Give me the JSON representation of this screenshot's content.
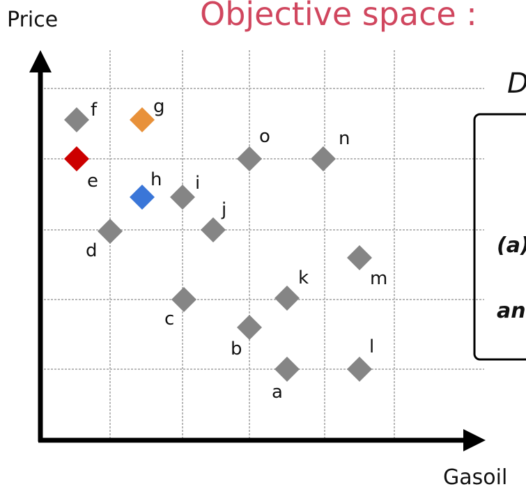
{
  "title": "Objective space :",
  "y_axis_label": "Price",
  "x_axis_label": "Gasoil",
  "side_heading": "D",
  "box_lines": [
    "(a)",
    "an"
  ],
  "points": [
    {
      "label": "f"
    },
    {
      "label": "g"
    },
    {
      "label": "e"
    },
    {
      "label": "h"
    },
    {
      "label": "i"
    },
    {
      "label": "j"
    },
    {
      "label": "o"
    },
    {
      "label": "n"
    },
    {
      "label": "d"
    },
    {
      "label": "k"
    },
    {
      "label": "m"
    },
    {
      "label": "c"
    },
    {
      "label": "b"
    },
    {
      "label": "l"
    },
    {
      "label": "a"
    }
  ]
}
